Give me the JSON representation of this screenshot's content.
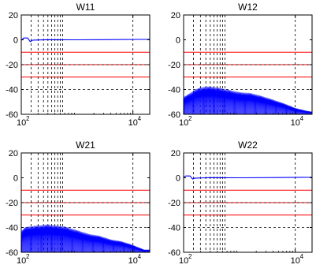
{
  "chart_data": [
    {
      "type": "line",
      "title": "W11",
      "x_scale": "log",
      "xlim": [
        100,
        20000
      ],
      "ylim": [
        -60,
        20
      ],
      "y_ticks": [
        20,
        0,
        -20,
        -40,
        -60
      ],
      "x_ticks": [
        {
          "base": "10",
          "exp": "2"
        },
        {
          "base": "10",
          "exp": "4"
        }
      ],
      "grid": false,
      "dashed_x_markers": [
        150,
        200,
        250,
        300,
        350,
        400,
        450,
        500,
        550,
        10000
      ],
      "dashed_y_markers": [
        -20,
        -40
      ],
      "red_reference_levels": [
        -10,
        -20,
        -30
      ],
      "series": [
        {
          "color": "#0000ff",
          "pattern": "flat",
          "points": [
            [
              100,
              -0.5
            ],
            [
              110,
              1.5
            ],
            [
              130,
              1.5
            ],
            [
              145,
              -1.5
            ],
            [
              160,
              -0.3
            ],
            [
              300,
              0.1
            ],
            [
              1000,
              0
            ],
            [
              5000,
              0.2
            ],
            [
              20000,
              0.4
            ]
          ]
        }
      ]
    },
    {
      "type": "line",
      "title": "W12",
      "x_scale": "log",
      "xlim": [
        100,
        20000
      ],
      "ylim": [
        -60,
        20
      ],
      "y_ticks": [
        20,
        0,
        -20,
        -40,
        -60
      ],
      "x_ticks": [
        {
          "base": "10",
          "exp": "2"
        },
        {
          "base": "10",
          "exp": "4"
        }
      ],
      "grid": false,
      "dashed_x_markers": [
        150,
        200,
        250,
        300,
        350,
        400,
        450,
        500,
        550,
        10000
      ],
      "dashed_y_markers": [
        -20,
        -40
      ],
      "red_reference_levels": [
        -10,
        -20,
        -30
      ],
      "series": [
        {
          "color": "#0000ff",
          "pattern": "lobes",
          "points": [
            [
              100,
              -41
            ],
            [
              140,
              -36
            ],
            [
              160,
              -33
            ],
            [
              200,
              -31
            ],
            [
              250,
              -30
            ],
            [
              300,
              -30
            ],
            [
              400,
              -31
            ],
            [
              600,
              -33
            ],
            [
              1000,
              -36
            ],
            [
              1600,
              -37
            ],
            [
              2500,
              -40
            ],
            [
              4000,
              -44
            ],
            [
              6300,
              -48
            ],
            [
              10000,
              -53
            ],
            [
              16000,
              -56
            ],
            [
              20000,
              -57
            ]
          ]
        }
      ]
    },
    {
      "type": "line",
      "title": "W21",
      "x_scale": "log",
      "xlim": [
        100,
        20000
      ],
      "ylim": [
        -60,
        20
      ],
      "y_ticks": [
        20,
        0,
        -20,
        -40,
        -60
      ],
      "x_ticks": [
        {
          "base": "10",
          "exp": "2"
        },
        {
          "base": "10",
          "exp": "4"
        }
      ],
      "grid": false,
      "dashed_x_markers": [
        150,
        200,
        250,
        300,
        350,
        400,
        450,
        500,
        550,
        10000
      ],
      "dashed_y_markers": [
        -20,
        -40
      ],
      "red_reference_levels": [
        -10,
        -20,
        -30
      ],
      "series": [
        {
          "color": "#0000ff",
          "pattern": "lobes",
          "points": [
            [
              100,
              -37
            ],
            [
              115,
              -33
            ],
            [
              140,
              -32
            ],
            [
              200,
              -31
            ],
            [
              300,
              -30
            ],
            [
              400,
              -31
            ],
            [
              600,
              -32
            ],
            [
              1000,
              -36
            ],
            [
              1600,
              -40
            ],
            [
              2500,
              -42
            ],
            [
              4000,
              -46
            ],
            [
              6300,
              -48
            ],
            [
              10000,
              -52
            ],
            [
              16000,
              -57
            ],
            [
              20000,
              -57
            ]
          ]
        }
      ]
    },
    {
      "type": "line",
      "title": "W22",
      "x_scale": "log",
      "xlim": [
        100,
        20000
      ],
      "ylim": [
        -60,
        20
      ],
      "y_ticks": [
        20,
        0,
        -20,
        -40,
        -60
      ],
      "x_ticks": [
        {
          "base": "10",
          "exp": "2"
        },
        {
          "base": "10",
          "exp": "4"
        }
      ],
      "grid": false,
      "dashed_x_markers": [
        150,
        200,
        250,
        300,
        350,
        400,
        450,
        500,
        550,
        10000
      ],
      "dashed_y_markers": [
        -20,
        -40
      ],
      "red_reference_levels": [
        -10,
        -20,
        -30
      ],
      "series": [
        {
          "color": "#0000ff",
          "pattern": "flat",
          "points": [
            [
              100,
              0.5
            ],
            [
              110,
              1.5
            ],
            [
              130,
              1.5
            ],
            [
              145,
              -1.0
            ],
            [
              160,
              -0.3
            ],
            [
              300,
              0.1
            ],
            [
              1000,
              0
            ],
            [
              5000,
              0.2
            ],
            [
              20000,
              0.4
            ]
          ]
        }
      ]
    }
  ]
}
